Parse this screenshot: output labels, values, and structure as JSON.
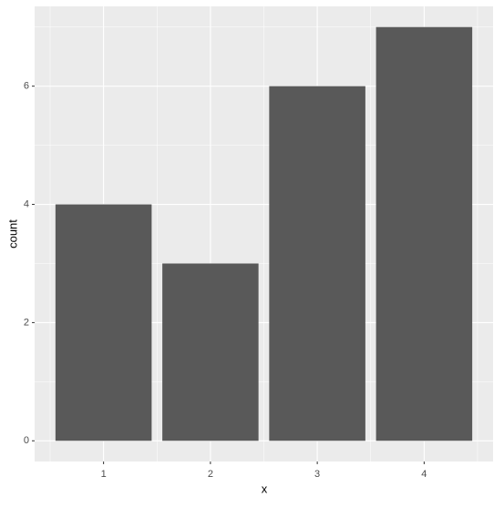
{
  "chart_data": {
    "type": "bar",
    "x": [
      1,
      2,
      3,
      4
    ],
    "values": [
      4,
      3,
      6,
      7
    ],
    "color": "#595959",
    "xlabel": "x",
    "ylabel": "count",
    "xlim": [
      0.355,
      4.645
    ],
    "xticks": [
      1,
      2,
      3,
      4
    ],
    "ylim": [
      -0.35,
      7.35
    ],
    "yticks": [
      0,
      2,
      4,
      6
    ],
    "grid": true
  }
}
